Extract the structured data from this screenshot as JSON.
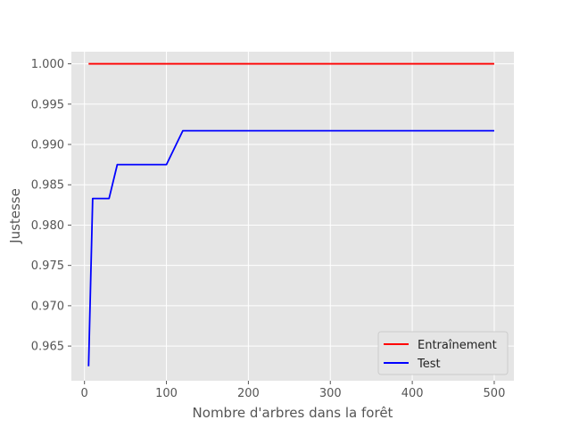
{
  "chart_data": {
    "type": "line",
    "title": "",
    "xlabel": "Nombre d'arbres dans la forêt",
    "ylabel": "Justesse",
    "xlim": [
      -16,
      524
    ],
    "ylim": [
      0.9607,
      1.0015
    ],
    "xticks": [
      0,
      100,
      200,
      300,
      400,
      500
    ],
    "yticks": [
      0.965,
      0.97,
      0.975,
      0.98,
      0.985,
      0.99,
      0.995,
      1.0
    ],
    "grid": true,
    "legend_position": "lower-right",
    "series": [
      {
        "name": "Entraînement",
        "color": "#ff0000",
        "x": [
          5,
          500
        ],
        "y": [
          1.0,
          1.0
        ]
      },
      {
        "name": "Test",
        "color": "#0000ff",
        "x": [
          5,
          10,
          20,
          30,
          40,
          50,
          100,
          120,
          150,
          200,
          300,
          400,
          500
        ],
        "y": [
          0.9625,
          0.9833,
          0.9833,
          0.9833,
          0.9875,
          0.9875,
          0.9875,
          0.9917,
          0.9917,
          0.9917,
          0.9917,
          0.9917,
          0.9917
        ]
      }
    ]
  }
}
